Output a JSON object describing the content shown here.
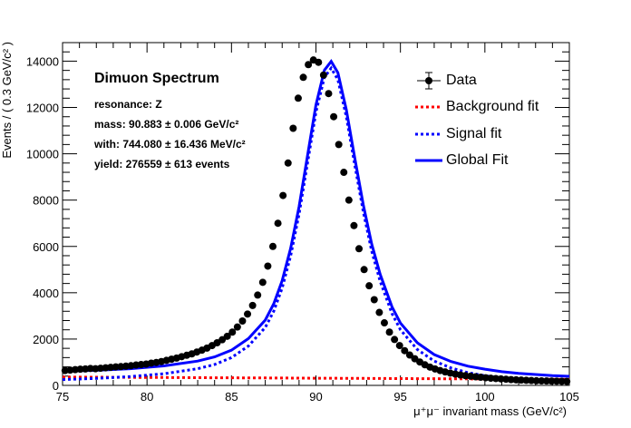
{
  "chart_data": {
    "type": "scatter",
    "xlabel": "μ⁺μ⁻ invariant mass (GeV/c²)",
    "ylabel": "Events / ( 0.3 GeV/c² )",
    "xlim": [
      75,
      105
    ],
    "ylim": [
      0,
      14800
    ],
    "x_ticks": [
      "75",
      "80",
      "85",
      "90",
      "95",
      "100",
      "105"
    ],
    "y_ticks": [
      "0",
      "2000",
      "4000",
      "6000",
      "8000",
      "10000",
      "12000",
      "14000"
    ],
    "grid": false,
    "legend_placement": "top-right",
    "stats_box": {
      "title": "Dimuon Spectrum",
      "lines": [
        "resonance: Z",
        "mass: 90.883 ± 0.006 GeV/c²",
        "with: 744.080 ± 16.436 MeV/c²",
        "yield: 276559 ± 613 events"
      ]
    },
    "legend": [
      "Data",
      "Background fit",
      "Signal fit",
      "Global Fit"
    ],
    "colors": {
      "data": "#000000",
      "background": "#ff0000",
      "signal": "#0000ff",
      "global": "#0000ff"
    },
    "data_points": {
      "x": [
        75.15,
        75.45,
        75.75,
        76.05,
        76.35,
        76.65,
        76.95,
        77.25,
        77.55,
        77.85,
        78.15,
        78.45,
        78.75,
        79.05,
        79.35,
        79.65,
        79.95,
        80.25,
        80.55,
        80.85,
        81.15,
        81.45,
        81.75,
        82.05,
        82.35,
        82.65,
        82.95,
        83.25,
        83.55,
        83.85,
        84.15,
        84.45,
        84.75,
        85.05,
        85.35,
        85.65,
        85.95,
        86.25,
        86.55,
        86.85,
        87.15,
        87.45,
        87.75,
        88.05,
        88.35,
        88.65,
        88.95,
        89.25,
        89.55,
        89.85,
        90.15,
        90.45,
        90.75,
        91.05,
        91.35,
        91.65,
        91.95,
        92.25,
        92.55,
        92.85,
        93.15,
        93.45,
        93.75,
        94.05,
        94.35,
        94.65,
        94.95,
        95.25,
        95.55,
        95.85,
        96.15,
        96.45,
        96.75,
        97.05,
        97.35,
        97.65,
        97.95,
        98.25,
        98.55,
        98.85,
        99.15,
        99.45,
        99.75,
        100.05,
        100.35,
        100.65,
        100.95,
        101.25,
        101.55,
        101.85,
        102.15,
        102.45,
        102.75,
        103.05,
        103.35,
        103.65,
        103.95,
        104.25,
        104.55,
        104.85
      ],
      "y": [
        640,
        660,
        680,
        700,
        710,
        730,
        720,
        740,
        760,
        780,
        800,
        810,
        830,
        850,
        880,
        900,
        920,
        960,
        990,
        1030,
        1080,
        1130,
        1180,
        1240,
        1300,
        1360,
        1440,
        1520,
        1610,
        1720,
        1840,
        1970,
        2120,
        2300,
        2520,
        2780,
        3080,
        3450,
        3900,
        4450,
        5150,
        6000,
        7000,
        8200,
        9600,
        11100,
        12400,
        13300,
        13850,
        14050,
        13950,
        13400,
        12600,
        11600,
        10400,
        9200,
        8000,
        6900,
        5900,
        5000,
        4300,
        3700,
        3150,
        2700,
        2300,
        1980,
        1720,
        1500,
        1310,
        1150,
        1010,
        890,
        790,
        710,
        640,
        580,
        530,
        490,
        450,
        420,
        395,
        370,
        350,
        330,
        310,
        295,
        280,
        265,
        250,
        240,
        230,
        220,
        210,
        200,
        195,
        190,
        185,
        180,
        175,
        170
      ]
    },
    "background_fit": {
      "x": [
        75,
        78,
        81,
        84,
        87,
        90,
        93,
        96,
        99,
        102,
        105
      ],
      "y": [
        360,
        350,
        340,
        330,
        320,
        310,
        300,
        290,
        280,
        270,
        260
      ]
    },
    "signal_fit": {
      "x": [
        75,
        77,
        79,
        81,
        83,
        84,
        85,
        86,
        87,
        87.5,
        88,
        88.5,
        89,
        89.5,
        90,
        90.5,
        90.9,
        91.3,
        91.8,
        92.3,
        92.8,
        93.3,
        93.8,
        94.5,
        95,
        96,
        97,
        98,
        99,
        100,
        101,
        102,
        103,
        104,
        105
      ],
      "y": [
        250,
        300,
        380,
        500,
        720,
        900,
        1200,
        1700,
        2500,
        3200,
        4200,
        5600,
        7400,
        9600,
        11800,
        13300,
        13700,
        13200,
        11600,
        9500,
        7500,
        5800,
        4500,
        3100,
        2400,
        1550,
        1050,
        750,
        550,
        420,
        320,
        250,
        200,
        160,
        130
      ]
    },
    "global_fit": {
      "x": [
        75,
        77,
        79,
        81,
        83,
        84,
        85,
        86,
        87,
        87.5,
        88,
        88.5,
        89,
        89.5,
        90,
        90.5,
        90.9,
        91.3,
        91.8,
        92.3,
        92.8,
        93.3,
        93.8,
        94.5,
        95,
        96,
        97,
        98,
        99,
        100,
        101,
        102,
        103,
        104,
        105
      ],
      "y": [
        610,
        650,
        720,
        840,
        1050,
        1230,
        1520,
        2020,
        2820,
        3520,
        4520,
        5920,
        7720,
        9920,
        12110,
        13610,
        13990,
        13500,
        11900,
        9800,
        7800,
        6100,
        4800,
        3390,
        2690,
        1840,
        1330,
        1030,
        830,
        700,
        590,
        520,
        470,
        420,
        390
      ]
    }
  }
}
